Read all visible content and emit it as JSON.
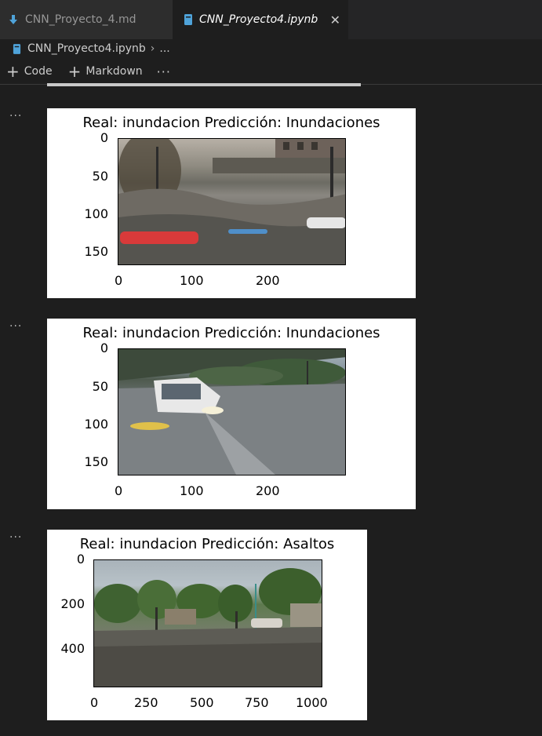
{
  "tabs": [
    {
      "label": "CNN_Proyecto_4.md",
      "icon": "markdown-download-icon",
      "active": false
    },
    {
      "label": "CNN_Proyecto4.ipynb",
      "icon": "notebook-icon",
      "active": true
    }
  ],
  "breadcrumb": {
    "file": "CNN_Proyecto4.ipynb",
    "rest": "..."
  },
  "toolbar": {
    "code_label": "Code",
    "markdown_label": "Markdown",
    "more_label": "···"
  },
  "cell_marker": "···",
  "outputs": [
    {
      "title": "Real: inundacion  Predicción: Inundaciones",
      "xticks": [
        "0",
        "100",
        "200"
      ],
      "yticks": [
        "0",
        "50",
        "100",
        "150"
      ]
    },
    {
      "title": "Real: inundacion  Predicción: Inundaciones",
      "xticks": [
        "0",
        "100",
        "200"
      ],
      "yticks": [
        "0",
        "50",
        "100",
        "150"
      ]
    },
    {
      "title": "Real: inundacion  Predicción: Asaltos",
      "xticks": [
        "0",
        "250",
        "500",
        "750",
        "1000"
      ],
      "yticks": [
        "0",
        "200",
        "400"
      ]
    }
  ],
  "colors": {
    "background": "#1e1e1e",
    "tabbar": "#252526",
    "active_tab": "#1e1e1e",
    "notebook_icon": "#4fa3d9"
  }
}
